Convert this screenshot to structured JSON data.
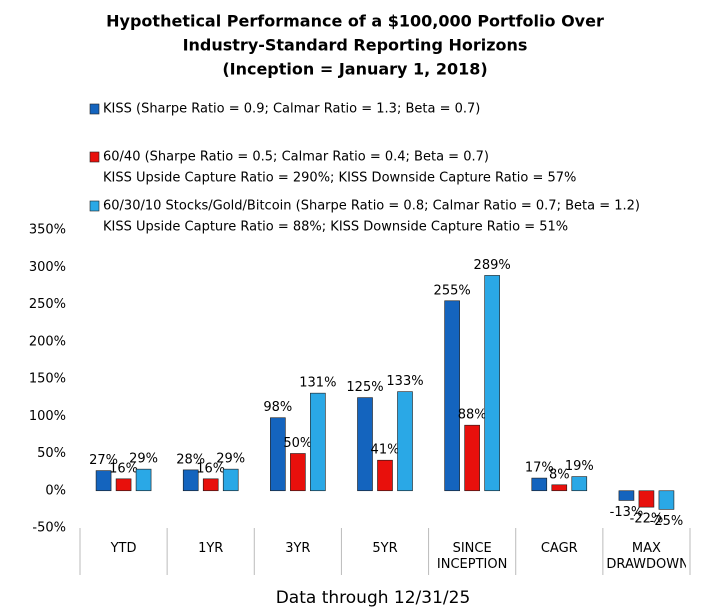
{
  "chart_data": {
    "type": "bar",
    "title": [
      "Hypothetical Performance of a $100,000 Portfolio Over",
      "Industry-Standard Reporting Horizons",
      "(Inception = January 1, 2018)"
    ],
    "categories": [
      "YTD",
      "1YR",
      "3YR",
      "5YR",
      "SINCE INCEPTION",
      "CAGR",
      "MAX DRAWDOWN"
    ],
    "series": [
      {
        "name": "KISS (Sharpe Ratio = 0.9; Calmar Ratio = 1.3; Beta = 0.7)",
        "color": "#1464be",
        "values": [
          27,
          28,
          98,
          125,
          255,
          17,
          -13
        ],
        "value_labels": [
          "27%",
          "28%",
          "98%",
          "125%",
          "255%",
          "17%",
          "-13%"
        ]
      },
      {
        "name": "60/40 (Sharpe Ratio = 0.5; Calmar Ratio = 0.4; Beta = 0.7)",
        "note": "KISS Upside Capture Ratio = 290%; KISS Downside Capture Ratio = 57%",
        "color": "#e8100c",
        "values": [
          16,
          16,
          50,
          41,
          88,
          8,
          -22
        ],
        "value_labels": [
          "16%",
          "16%",
          "50%",
          "41%",
          "88%",
          "8%",
          "-22%"
        ]
      },
      {
        "name": "60/30/10 Stocks/Gold/Bitcoin (Sharpe Ratio = 0.8; Calmar Ratio = 0.7; Beta = 1.2)",
        "note": "KISS Upside Capture Ratio = 88%; KISS Downside Capture Ratio = 51%",
        "color": "#2aa8e6",
        "values": [
          29,
          29,
          131,
          133,
          289,
          19,
          -25
        ],
        "value_labels": [
          "29%",
          "29%",
          "131%",
          "133%",
          "289%",
          "19%",
          "-25%"
        ]
      }
    ],
    "ylim": [
      -50,
      350
    ],
    "yticks": [
      {
        "value": -50,
        "label": "-50%"
      },
      {
        "value": 0,
        "label": "0%"
      },
      {
        "value": 50,
        "label": "50%"
      },
      {
        "value": 100,
        "label": "100%"
      },
      {
        "value": 150,
        "label": "150%"
      },
      {
        "value": 200,
        "label": "200%"
      },
      {
        "value": 250,
        "label": "250%"
      },
      {
        "value": 300,
        "label": "300%"
      },
      {
        "value": 350,
        "label": "350%"
      }
    ],
    "grid": false,
    "negative_color": "#e8100c",
    "footer": "Data through 12/31/25"
  }
}
